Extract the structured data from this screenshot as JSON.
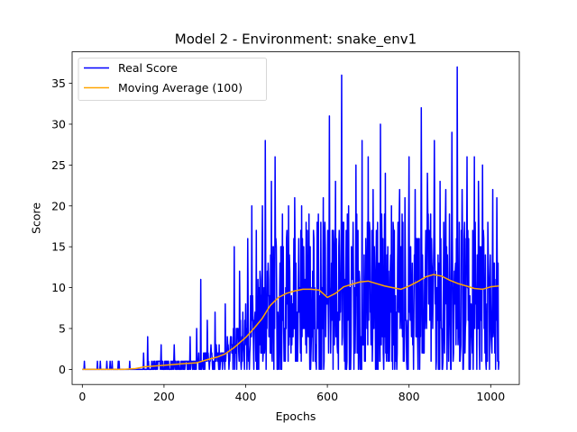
{
  "chart_data": {
    "type": "line",
    "title": "Model 2 - Environment: snake_env1",
    "xlabel": "Epochs",
    "ylabel": "Score",
    "xlim": [
      -25,
      1070
    ],
    "ylim": [
      -1.85,
      38.85
    ],
    "xticks": [
      0,
      200,
      400,
      600,
      800,
      1000
    ],
    "yticks": [
      0,
      5,
      10,
      15,
      20,
      25,
      30,
      35
    ],
    "grid": false,
    "legend_position": "top-left",
    "series": [
      {
        "name": "Real Score",
        "color": "#0000ff",
        "seed": 12345,
        "x_range": [
          0,
          1020
        ],
        "y_min": 0,
        "y_max": 37,
        "noise_envelope": {
          "x": [
            0,
            60,
            100,
            150,
            200,
            250,
            300,
            350,
            400,
            450,
            500,
            550,
            600,
            650,
            700,
            750,
            800,
            850,
            900,
            950,
            1000,
            1020
          ],
          "y": [
            0.3,
            0.5,
            1.2,
            3,
            4.5,
            6,
            7,
            9,
            13,
            16,
            17,
            18,
            19,
            19,
            19,
            19,
            19,
            19,
            19,
            18,
            17,
            17
          ]
        },
        "spikes": [
          [
            5,
            1
          ],
          [
            68,
            1
          ],
          [
            88,
            1
          ],
          [
            116,
            1
          ],
          [
            150,
            2
          ],
          [
            160,
            4
          ],
          [
            193,
            3
          ],
          [
            225,
            3
          ],
          [
            264,
            4
          ],
          [
            280,
            5
          ],
          [
            290,
            11
          ],
          [
            306,
            6
          ],
          [
            325,
            7
          ],
          [
            350,
            8
          ],
          [
            372,
            15
          ],
          [
            385,
            12
          ],
          [
            405,
            16
          ],
          [
            415,
            20
          ],
          [
            426,
            17
          ],
          [
            441,
            20
          ],
          [
            448,
            28
          ],
          [
            463,
            23
          ],
          [
            472,
            26
          ],
          [
            490,
            19
          ],
          [
            505,
            20
          ],
          [
            520,
            21
          ],
          [
            537,
            20
          ],
          [
            548,
            18
          ],
          [
            555,
            19
          ],
          [
            578,
            19
          ],
          [
            590,
            21
          ],
          [
            605,
            31
          ],
          [
            620,
            23
          ],
          [
            635,
            36
          ],
          [
            652,
            20
          ],
          [
            670,
            25
          ],
          [
            685,
            28
          ],
          [
            700,
            26
          ],
          [
            712,
            22
          ],
          [
            730,
            30
          ],
          [
            742,
            24
          ],
          [
            757,
            20
          ],
          [
            777,
            22
          ],
          [
            790,
            21
          ],
          [
            800,
            26
          ],
          [
            815,
            22
          ],
          [
            830,
            32
          ],
          [
            845,
            24
          ],
          [
            862,
            28
          ],
          [
            876,
            23
          ],
          [
            890,
            22
          ],
          [
            905,
            29
          ],
          [
            918,
            37
          ],
          [
            930,
            22
          ],
          [
            942,
            26
          ],
          [
            960,
            26
          ],
          [
            970,
            23
          ],
          [
            980,
            25
          ],
          [
            993,
            18
          ],
          [
            1005,
            22
          ],
          [
            1015,
            21
          ]
        ]
      },
      {
        "name": "Moving Average (100)",
        "color": "#ffa500",
        "x": [
          0,
          100,
          130,
          150,
          200,
          250,
          280,
          300,
          330,
          350,
          370,
          400,
          420,
          440,
          460,
          480,
          500,
          520,
          540,
          560,
          580,
          600,
          620,
          640,
          660,
          680,
          700,
          720,
          740,
          760,
          780,
          800,
          820,
          840,
          860,
          880,
          900,
          920,
          940,
          960,
          980,
          1000,
          1020
        ],
        "y": [
          0,
          0,
          0.1,
          0.3,
          0.5,
          0.7,
          0.8,
          1.1,
          1.5,
          1.9,
          2.6,
          3.9,
          5,
          6.2,
          7.8,
          8.8,
          9.3,
          9.6,
          9.8,
          9.8,
          9.7,
          8.8,
          9.3,
          10.1,
          10.4,
          10.7,
          10.8,
          10.5,
          10.2,
          10,
          9.8,
          10.2,
          10.7,
          11.3,
          11.6,
          11.4,
          10.9,
          10.5,
          10.2,
          9.9,
          9.8,
          10.1,
          10.2
        ]
      }
    ]
  }
}
